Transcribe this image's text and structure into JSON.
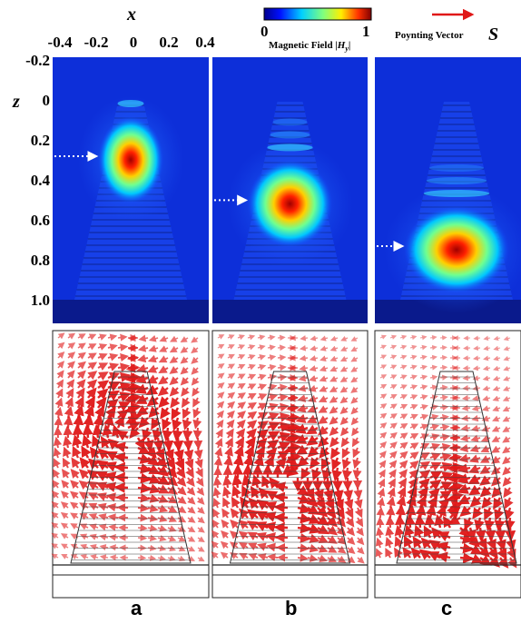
{
  "x_axis": {
    "label": "x",
    "ticks": [
      "-0.4",
      "-0.2",
      "0",
      "0.2",
      "0.4"
    ]
  },
  "z_axis": {
    "label": "z",
    "ticks": [
      "-0.2",
      "0",
      "0.2",
      "0.4",
      "0.6",
      "0.8",
      "1.0"
    ]
  },
  "colorbar": {
    "min_label": "0",
    "max_label": "1",
    "title_text": "Magnetic Field |",
    "title_symbol": "H",
    "title_subscript": "y",
    "title_end": "|"
  },
  "poynting_legend": {
    "text": "Poynting Vector",
    "symbol": "S",
    "arrow_color": "#e01818"
  },
  "panels": [
    {
      "letter": "a",
      "hotspot_z": 0.3
    },
    {
      "letter": "b",
      "hotspot_z": 0.52
    },
    {
      "letter": "c",
      "hotspot_z": 0.75
    }
  ],
  "colors": {
    "background_field": "#0d2fd9",
    "substrate_field": "#0a1a8c",
    "arrow": "#e01818",
    "layer_lines": "#444444"
  }
}
